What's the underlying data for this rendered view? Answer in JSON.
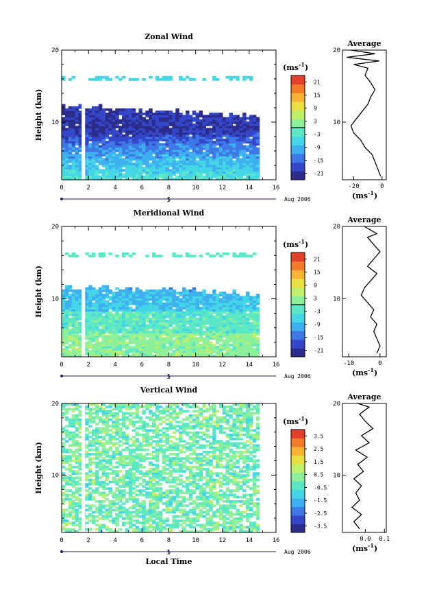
{
  "chart_data": [
    {
      "type": "heatmap",
      "title": "Zonal Wind",
      "ylabel": "Height (km)",
      "xticks": [
        "0",
        "2",
        "4",
        "6",
        "8",
        "10",
        "12",
        "14",
        "16"
      ],
      "yticks": [
        "10",
        "20"
      ],
      "date_label": "5",
      "date_suffix": "Aug 2006",
      "colorbar_unit": "(ms",
      "colorbar_unit_exp": "-1",
      "colorbar_unit_close": ")",
      "colorbar_ticks": [
        "21",
        "15",
        "9",
        "3",
        "-3",
        "-9",
        "-15",
        "-21"
      ],
      "colorbar_range": [
        -24,
        24
      ],
      "zero_line": 0,
      "xlim": [
        0,
        16
      ],
      "ylim": [
        2,
        20
      ],
      "average": {
        "title": "Average",
        "xticks": [
          "-20",
          "0"
        ],
        "yticks": [
          "10",
          "20"
        ],
        "xlim": [
          -28,
          3
        ],
        "unit": "(ms",
        "unit_exp": "-1",
        "unit_close": ")",
        "profile": [
          [
            2.5,
            -1
          ],
          [
            3.5,
            -3
          ],
          [
            4.5,
            -5
          ],
          [
            5.5,
            -7
          ],
          [
            6.5,
            -12
          ],
          [
            7.5,
            -15
          ],
          [
            8.5,
            -20
          ],
          [
            9.5,
            -22
          ],
          [
            10.5,
            -18
          ],
          [
            11.5,
            -14
          ],
          [
            12.5,
            -10
          ],
          [
            13.5,
            -8
          ],
          [
            14.5,
            -5
          ],
          [
            15.5,
            -8
          ],
          [
            16.5,
            -12
          ],
          [
            17.5,
            -10
          ],
          [
            18.0,
            -20
          ],
          [
            18.5,
            -2
          ],
          [
            19.0,
            -25
          ],
          [
            19.5,
            -5
          ],
          [
            20,
            -22
          ]
        ]
      }
    },
    {
      "type": "heatmap",
      "title": "Meridional Wind",
      "ylabel": "Height (km)",
      "xticks": [
        "0",
        "2",
        "4",
        "6",
        "8",
        "10",
        "12",
        "14",
        "16"
      ],
      "yticks": [
        "10",
        "20"
      ],
      "date_label": "5",
      "date_suffix": "Aug 2006",
      "colorbar_unit": "(ms",
      "colorbar_unit_exp": "-1",
      "colorbar_unit_close": ")",
      "colorbar_ticks": [
        "21",
        "15",
        "9",
        "3",
        "-3",
        "-9",
        "-15",
        "-21"
      ],
      "colorbar_range": [
        -24,
        24
      ],
      "zero_line": 0,
      "xlim": [
        0,
        16
      ],
      "ylim": [
        2,
        20
      ],
      "average": {
        "title": "Average",
        "xticks": [
          "-10",
          "0"
        ],
        "yticks": [
          "10",
          "20"
        ],
        "xlim": [
          -12,
          2
        ],
        "unit": "(ms",
        "unit_exp": "-1",
        "unit_close": ")",
        "profile": [
          [
            2.5,
            -1
          ],
          [
            3.5,
            0
          ],
          [
            4.5,
            -1
          ],
          [
            5.5,
            -2
          ],
          [
            6.5,
            -1
          ],
          [
            7.5,
            -3
          ],
          [
            8.5,
            -2
          ],
          [
            9.5,
            -4
          ],
          [
            10.5,
            -6
          ],
          [
            11.5,
            -5
          ],
          [
            12.5,
            -3
          ],
          [
            13.5,
            -1
          ],
          [
            14.5,
            -4
          ],
          [
            15.5,
            -2
          ],
          [
            16.5,
            0
          ],
          [
            17.5,
            -2
          ],
          [
            18.5,
            -4
          ],
          [
            19.0,
            -1
          ],
          [
            19.5,
            -3
          ],
          [
            20,
            -5
          ]
        ]
      }
    },
    {
      "type": "heatmap",
      "title": "Vertical Wind",
      "ylabel": "Height (km)",
      "xlabel": "Local Time",
      "xticks": [
        "0",
        "2",
        "4",
        "6",
        "8",
        "10",
        "12",
        "14",
        "16"
      ],
      "yticks": [
        "10",
        "20"
      ],
      "date_label": "5",
      "date_suffix": "Aug 2006",
      "colorbar_unit": "(ms",
      "colorbar_unit_exp": "-1",
      "colorbar_unit_close": ")",
      "colorbar_ticks": [
        "3.5",
        "2.5",
        "1.5",
        "0.5",
        "-0.5",
        "-1.5",
        "-2.5",
        "-3.5"
      ],
      "colorbar_range": [
        -4,
        4
      ],
      "zero_line": null,
      "xlim": [
        0,
        16
      ],
      "ylim": [
        2,
        20
      ],
      "average": {
        "title": "Average",
        "xticks": [
          "0.0",
          "0.1"
        ],
        "yticks": [
          "10",
          "20"
        ],
        "xlim": [
          -0.12,
          0.11
        ],
        "unit": "(ms",
        "unit_exp": "-1",
        "unit_close": ")",
        "profile": [
          [
            2.5,
            -0.03
          ],
          [
            3.5,
            -0.06
          ],
          [
            4.5,
            -0.02
          ],
          [
            5.5,
            -0.07
          ],
          [
            6.5,
            -0.03
          ],
          [
            7.5,
            -0.05
          ],
          [
            8.5,
            -0.02
          ],
          [
            9.5,
            -0.06
          ],
          [
            10.5,
            -0.01
          ],
          [
            11.5,
            -0.04
          ],
          [
            12.5,
            0.01
          ],
          [
            13.5,
            -0.05
          ],
          [
            14.5,
            0.02
          ],
          [
            15.5,
            -0.02
          ],
          [
            16.5,
            0.04
          ],
          [
            17.5,
            0.0
          ],
          [
            18.5,
            -0.03
          ],
          [
            19.5,
            0.02
          ],
          [
            20,
            -0.04
          ]
        ]
      }
    }
  ]
}
